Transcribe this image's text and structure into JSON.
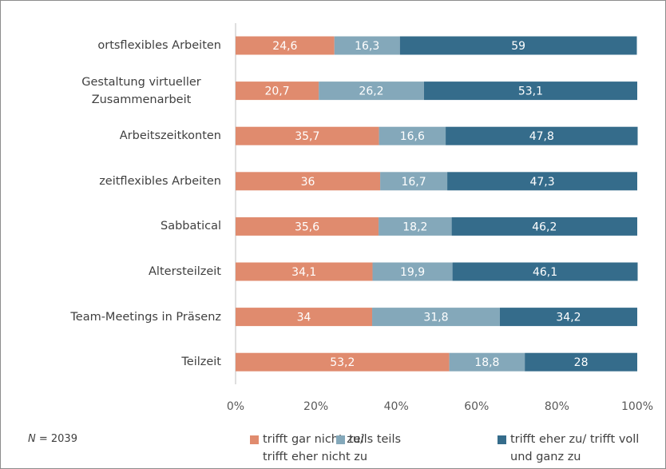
{
  "chart_data": {
    "type": "stacked-bar-horizontal",
    "categories": [
      "ortsflexibles Arbeiten",
      "Gestaltung virtueller Zusammenarbeit",
      "Arbeitszeitkonten",
      "zeitflexibles Arbeiten",
      "Sabbatical",
      "Altersteilzeit",
      "Team-Meetings in Präsenz",
      "Teilzeit"
    ],
    "series": [
      {
        "name": "trifft gar nicht zu/ trifft eher nicht zu",
        "color": "#e08b6e",
        "values": [
          24.6,
          20.7,
          35.7,
          36,
          35.6,
          34.1,
          34,
          53.2
        ],
        "value_labels": [
          "24,6",
          "20,7",
          "35,7",
          "36",
          "35,6",
          "34,1",
          "34",
          "53,2"
        ]
      },
      {
        "name": "teils teils",
        "color": "#84a8ba",
        "values": [
          16.3,
          26.2,
          16.6,
          16.7,
          18.2,
          19.9,
          31.8,
          18.8
        ],
        "value_labels": [
          "16,3",
          "26,2",
          "16,6",
          "16,7",
          "18,2",
          "19,9",
          "31,8",
          "18,8"
        ]
      },
      {
        "name": "trifft eher zu/ trifft voll und ganz zu",
        "color": "#356c8b",
        "values": [
          59,
          53.1,
          47.8,
          47.3,
          46.2,
          46.1,
          34.2,
          28
        ],
        "value_labels": [
          "59",
          "53,1",
          "47,8",
          "47,3",
          "46,2",
          "46,1",
          "34,2",
          "28"
        ]
      }
    ],
    "xlim": [
      0,
      100
    ],
    "xticks": [
      {
        "value": 0,
        "label": "0%"
      },
      {
        "value": 20,
        "label": "20%"
      },
      {
        "value": 40,
        "label": "40%"
      },
      {
        "value": 60,
        "label": "60%"
      },
      {
        "value": 80,
        "label": "80%"
      },
      {
        "value": 100,
        "label": "100%"
      }
    ],
    "annotation": "N = 2039"
  }
}
